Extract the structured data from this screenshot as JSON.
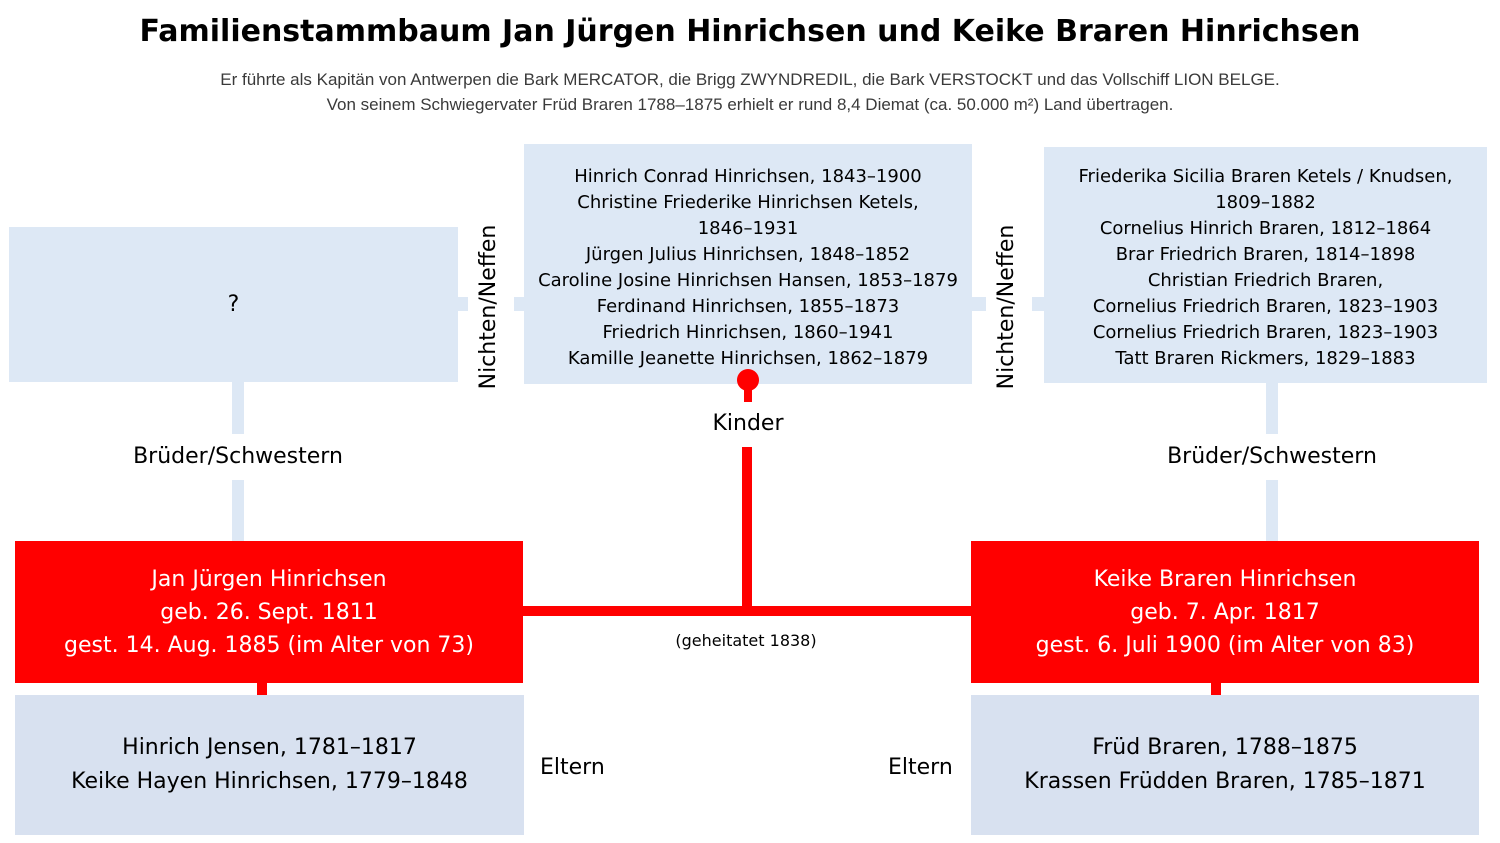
{
  "title": "Familienstammbaum Jan Jürgen Hinrichsen und Keike Braren Hinrichsen",
  "subtitle": [
    "Er führte als Kapitän von Antwerpen die Bark MERCATOR, die Brigg ZWYNDREDIL, die Bark VERSTOCKT und das Vollschiff LION BELGE.",
    "Von seinem Schwiegervater Früd Braren 1788–1875  erhielt er rund 8,4 Diemat (ca. 50.000 m²) Land übertragen."
  ],
  "left_siblings": {
    "text": "?"
  },
  "children": [
    "Hinrich Conrad Hinrichsen, 1843–1900",
    "Christine Friederike Hinrichsen Ketels,",
    "1846–1931",
    "Jürgen Julius Hinrichsen, 1848–1852",
    "Caroline Josine Hinrichsen Hansen, 1853–1879",
    "Ferdinand Hinrichsen, 1855–1873",
    "Friedrich Hinrichsen, 1860–1941",
    "Kamille Jeanette Hinrichsen, 1862–1879"
  ],
  "right_siblings": [
    "Friederika Sicilia Braren Ketels / Knudsen,",
    "1809–1882",
    "Cornelius Hinrich Braren, 1812–1864",
    "Brar Friedrich Braren, 1814–1898",
    "Christian Friedrich Braren,",
    "Cornelius Friedrich Braren, 1823–1903",
    "Cornelius Friedrich Braren, 1823–1903",
    "Tatt Braren Rickmers, 1829–1883"
  ],
  "labels": {
    "nieces_left": "Nichten/Neffen",
    "nieces_right": "Nichten/Neffen",
    "kinder": "Kinder",
    "siblings_left": "Brüder/Schwestern",
    "siblings_right": "Brüder/Schwestern",
    "married": "(geheitatet 1838)",
    "parents_left": "Eltern",
    "parents_right": "Eltern"
  },
  "husband": [
    "Jan Jürgen Hinrichsen",
    "geb. 26. Sept. 1811",
    "gest. 14. Aug. 1885 (im Alter von 73)"
  ],
  "wife": [
    "Keike Braren Hinrichsen",
    "geb. 7. Apr. 1817",
    "gest. 6. Juli 1900 (im Alter von 83)"
  ],
  "husband_parents": [
    "Hinrich Jensen, 1781–1817",
    "Keike Hayen Hinrichsen, 1779–1848"
  ],
  "wife_parents": [
    "Früd Braren, 1788–1875",
    "Krassen Früdden Braren, 1785–1871"
  ],
  "colors": {
    "red": "#ff0000",
    "light_blue": "#dde8f5",
    "parents_blue": "#d8e1f0"
  }
}
